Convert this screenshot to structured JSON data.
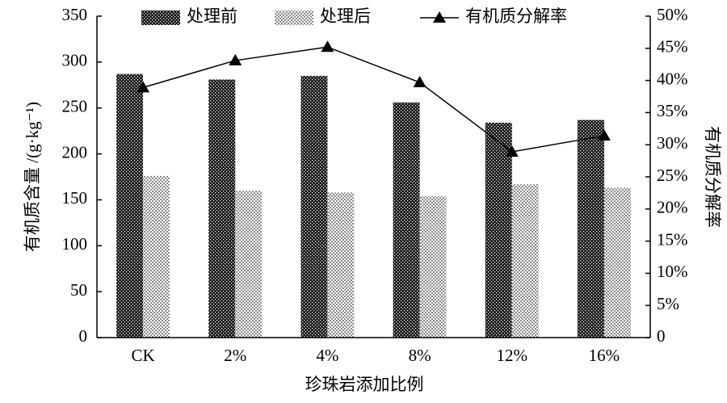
{
  "chart_data": {
    "type": "bar",
    "x_label": "珍珠岩添加比例",
    "y_label": "有机质含量 /(g·kg⁻¹)",
    "y2_label": "有机质分解率",
    "categories": [
      "CK",
      "2%",
      "4%",
      "8%",
      "12%",
      "16%"
    ],
    "series": [
      {
        "name": "处理前",
        "type": "bar",
        "color": "#1a1a1a",
        "values": [
          287,
          281,
          285,
          256,
          234,
          237
        ]
      },
      {
        "name": "处理后",
        "type": "bar",
        "color": "#8c8c8c",
        "values": [
          176,
          160,
          158,
          154,
          167,
          163
        ]
      },
      {
        "name": "有机质分解率",
        "type": "line",
        "axis": "y2",
        "color": "#000000",
        "values": [
          38.9,
          43.1,
          45.2,
          39.7,
          28.9,
          31.4
        ]
      }
    ],
    "ylim": [
      0,
      350
    ],
    "yticks": [
      0,
      50,
      100,
      150,
      200,
      250,
      300,
      350
    ],
    "y2lim": [
      0,
      50
    ],
    "y2ticks": [
      0,
      {
        "value": 5,
        "label": "5%"
      },
      {
        "value": 10,
        "label": "10%"
      },
      {
        "value": 15,
        "label": "15%"
      },
      {
        "value": 20,
        "label": "20%"
      },
      {
        "value": 25,
        "label": "25%"
      },
      {
        "value": 30,
        "label": "30%"
      },
      {
        "value": 35,
        "label": "35%"
      },
      {
        "value": 40,
        "label": "40%"
      },
      {
        "value": 45,
        "label": "45%"
      },
      {
        "value": 50,
        "label": "50%"
      }
    ],
    "legend": "top"
  }
}
